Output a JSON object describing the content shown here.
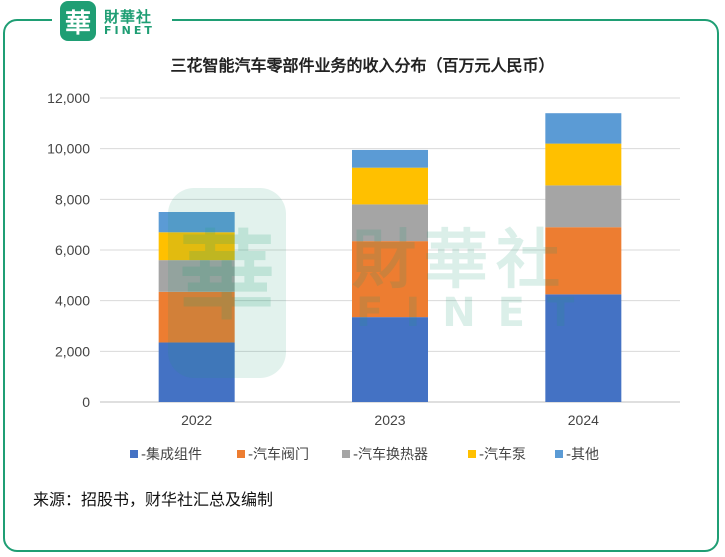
{
  "logo": {
    "glyph": "華",
    "cn": "財華社",
    "en": "FINET",
    "color": "#1f9e74"
  },
  "watermark": {
    "glyph": "華",
    "cn": "財華社",
    "en": "FINET"
  },
  "source": "来源：招股书，财华社汇总及编制",
  "chart_data": {
    "type": "bar",
    "stacked": true,
    "title": "三花智能汽车零部件业务的收入分布（百万元人民币）",
    "categories": [
      "2022",
      "2023",
      "2024"
    ],
    "series": [
      {
        "name": "-集成组件",
        "color": "#4472C4",
        "values": [
          2350,
          3350,
          4250
        ]
      },
      {
        "name": "-汽车阀门",
        "color": "#ED7D31",
        "values": [
          2000,
          3000,
          2650
        ]
      },
      {
        "name": "-汽车换热器",
        "color": "#A5A5A5",
        "values": [
          1250,
          1450,
          1650
        ]
      },
      {
        "name": "-汽车泵",
        "color": "#FFC000",
        "values": [
          1100,
          1450,
          1650
        ]
      },
      {
        "name": "-其他",
        "color": "#5B9BD5",
        "values": [
          800,
          700,
          1200
        ]
      }
    ],
    "ylim": [
      0,
      12000
    ],
    "yticks": [
      "0",
      "2,000",
      "4,000",
      "6,000",
      "8,000",
      "10,000",
      "12,000"
    ],
    "ytick_values": [
      0,
      2000,
      4000,
      6000,
      8000,
      10000,
      12000
    ],
    "grid": true,
    "legend_position": "bottom"
  }
}
